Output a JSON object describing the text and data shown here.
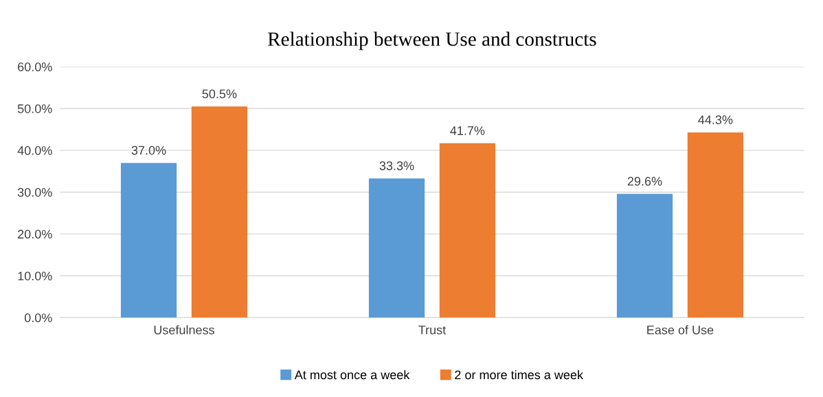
{
  "chart_data": {
    "type": "bar",
    "title": "Relationship between Use and constructs",
    "categories": [
      "Usefulness",
      "Trust",
      "Ease of Use"
    ],
    "series": [
      {
        "name": "At most once a week",
        "color": "#5b9bd5",
        "values": [
          37.0,
          33.3,
          29.6
        ],
        "value_labels": [
          "37.0%",
          "33.3%",
          "29.6%"
        ]
      },
      {
        "name": "2 or more times a week",
        "color": "#ed7d31",
        "values": [
          50.5,
          41.7,
          44.3
        ],
        "value_labels": [
          "50.5%",
          "41.7%",
          "44.3%"
        ]
      }
    ],
    "ylim": [
      0,
      60
    ],
    "yticks": [
      {
        "value": 0,
        "label": "0.0%"
      },
      {
        "value": 10,
        "label": "10.0%"
      },
      {
        "value": 20,
        "label": "20.0%"
      },
      {
        "value": 30,
        "label": "30.0%"
      },
      {
        "value": 40,
        "label": "40.0%"
      },
      {
        "value": 50,
        "label": "50.0%"
      },
      {
        "value": 60,
        "label": "60.0%"
      }
    ],
    "grid": "y",
    "legend": "bottom"
  }
}
